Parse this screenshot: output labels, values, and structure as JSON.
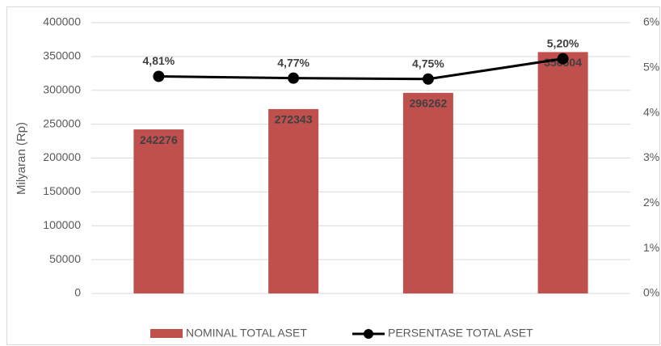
{
  "chart_data": {
    "type": "bar",
    "categories": [
      null,
      null,
      null,
      null
    ],
    "y_label": "Milyaran (Rp)",
    "ylim": [
      0,
      400000
    ],
    "yticks": [
      0,
      50000,
      100000,
      150000,
      200000,
      250000,
      300000,
      350000,
      400000
    ],
    "y2lim": [
      0,
      6
    ],
    "y2ticks": [
      {
        "value": 0,
        "label": "0%"
      },
      {
        "value": 1,
        "label": "1%"
      },
      {
        "value": 2,
        "label": "2%"
      },
      {
        "value": 3,
        "label": "3%"
      },
      {
        "value": 4,
        "label": "4%"
      },
      {
        "value": 5,
        "label": "5%"
      },
      {
        "value": 6,
        "label": "6%"
      }
    ],
    "grid": true,
    "legend": "bottom",
    "series": [
      {
        "name": "NOMINAL TOTAL ASET",
        "type": "bar",
        "color": "#c0504d",
        "values": [
          242276,
          272343,
          296262,
          356504
        ]
      },
      {
        "name": "PERSENTASE TOTAL ASET",
        "type": "line",
        "axis": "y2",
        "color": "#000000",
        "values": [
          4.81,
          4.77,
          4.75,
          5.2
        ],
        "value_labels": [
          "4,81%",
          "4,77%",
          "4,75%",
          "5,20%"
        ]
      }
    ]
  }
}
